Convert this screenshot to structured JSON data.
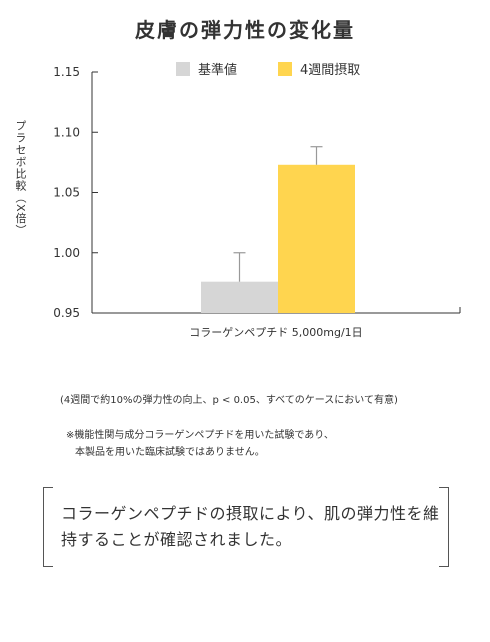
{
  "chart_data": {
    "type": "bar",
    "title": "皮膚の弾力性の変化量",
    "ylabel": "プラセボ比較（X倍）",
    "xlabel": "コラーゲンペプチド 5,000mg/1日",
    "ylim": [
      0.95,
      1.15
    ],
    "yticks": [
      "1.15",
      "1.10",
      "1.05",
      "1.00",
      "0.95"
    ],
    "ytick_values": [
      1.15,
      1.1,
      1.05,
      1.0,
      0.95
    ],
    "legend_position": "top",
    "series": [
      {
        "name": "基準値",
        "value": 0.976,
        "error": 0.024,
        "color": "#d6d6d6"
      },
      {
        "name": "4週間摂取",
        "value": 1.073,
        "error": 0.015,
        "color": "#ffd54f"
      }
    ],
    "grid": false
  },
  "notes": {
    "note1": "(4週間で約10%の弾力性の向上、p < 0.05、すべてのケースにおいて有意)",
    "note2_line1": "※機能性関与成分コラーゲンペプチドを用いた試験であり、",
    "note2_line2": "本製品を用いた臨床試験ではありません。"
  },
  "conclusion": "コラーゲンペプチドの摂取により、肌の弾力性を維持することが確認されました。"
}
